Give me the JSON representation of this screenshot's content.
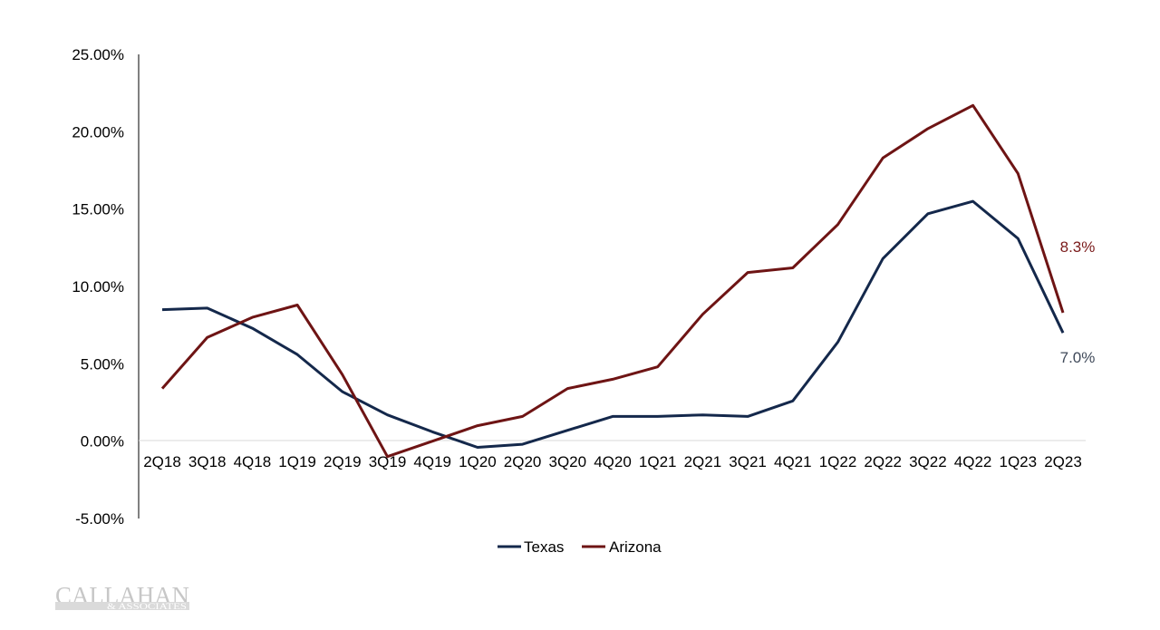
{
  "chart_data": {
    "type": "line",
    "title": "",
    "xlabel": "",
    "ylabel": "",
    "ylim": [
      -5,
      25
    ],
    "y_ticks": [
      25,
      20,
      15,
      10,
      5,
      0,
      -5
    ],
    "y_tick_labels": [
      "25.00%",
      "20.00%",
      "15.00%",
      "10.00%",
      "5.00%",
      "0.00%",
      "-5.00%"
    ],
    "categories": [
      "2Q18",
      "3Q18",
      "4Q18",
      "1Q19",
      "2Q19",
      "3Q19",
      "4Q19",
      "1Q20",
      "2Q20",
      "3Q20",
      "4Q20",
      "1Q21",
      "2Q21",
      "3Q21",
      "4Q21",
      "1Q22",
      "2Q22",
      "3Q22",
      "4Q22",
      "1Q23",
      "2Q23"
    ],
    "series": [
      {
        "name": "Texas",
        "color": "#14284b",
        "values": [
          8.5,
          8.6,
          7.3,
          5.6,
          3.2,
          1.7,
          0.6,
          -0.4,
          -0.2,
          0.7,
          1.6,
          1.6,
          1.7,
          1.6,
          2.6,
          6.4,
          11.8,
          14.7,
          15.5,
          13.1,
          7.0
        ],
        "end_label": "7.0%"
      },
      {
        "name": "Arizona",
        "color": "#6e1414",
        "values": [
          3.4,
          6.7,
          8.0,
          8.8,
          4.3,
          -1.0,
          0.0,
          1.0,
          1.6,
          3.4,
          4.0,
          4.8,
          8.2,
          10.9,
          11.2,
          14.0,
          18.3,
          20.2,
          21.7,
          17.3,
          8.3
        ],
        "end_label": "8.3%"
      }
    ],
    "legend_position": "bottom-center",
    "grid": false
  },
  "watermark": {
    "name": "CALLAHAN",
    "sub": "& ASSOCIATES"
  }
}
